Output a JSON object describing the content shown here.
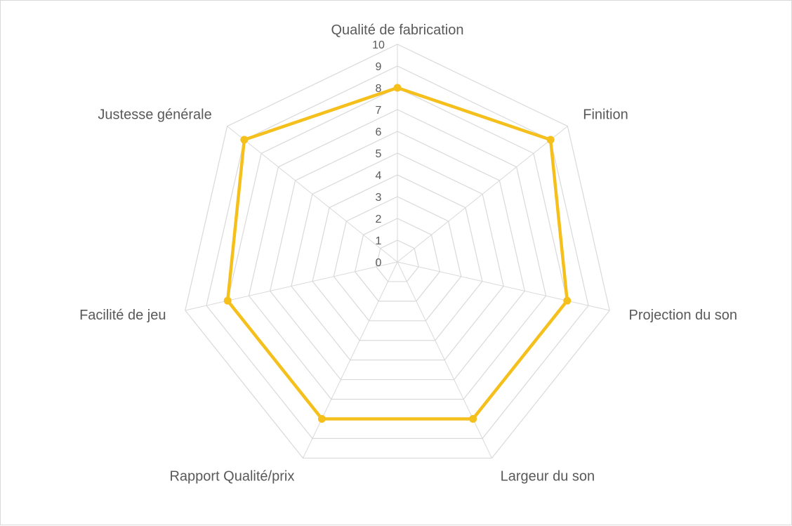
{
  "chart_data": {
    "type": "radar",
    "categories": [
      "Qualité de fabrication",
      "Finition",
      "Projection du son",
      "Largeur du son",
      "Rapport Qualité/prix",
      "Facilité de jeu",
      "Justesse générale"
    ],
    "series": [
      {
        "values": [
          8,
          9,
          8,
          8,
          8,
          8,
          9
        ]
      }
    ],
    "rlim": [
      0,
      10
    ],
    "ticks": [
      "0",
      "1",
      "2",
      "3",
      "4",
      "5",
      "6",
      "7",
      "8",
      "9",
      "10"
    ],
    "grid": true,
    "legend": "none",
    "colors": {
      "series": "#f5bf1c",
      "grid": "#d9d9d9",
      "text": "#595959"
    }
  }
}
